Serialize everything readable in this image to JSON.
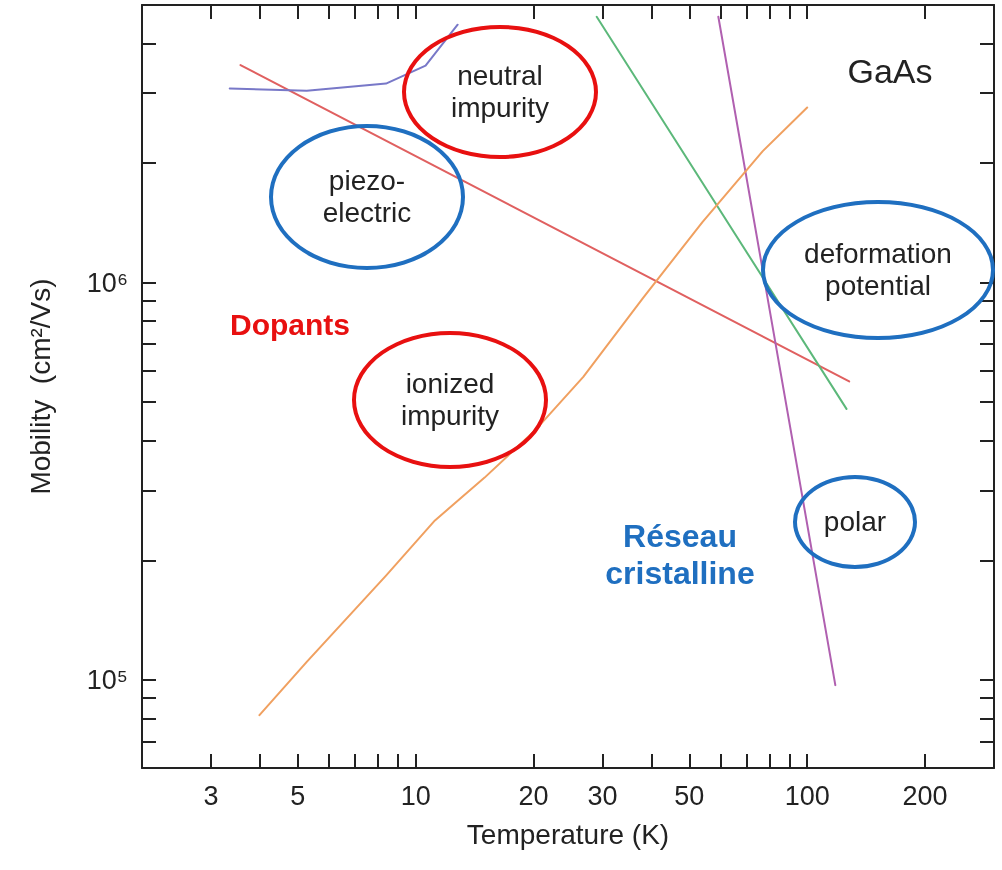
{
  "chart_data": {
    "type": "line",
    "xlabel": "Temperature (K)",
    "ylabel": "Mobility  (cm²/Vs)",
    "log": "xy",
    "grid": false,
    "marker": "none",
    "xlim": [
      2,
      300
    ],
    "ylim": [
      60000,
      5000000
    ],
    "xticks": [
      3,
      {
        "value": 4,
        "label": null
      },
      5,
      {
        "value": 6,
        "label": null
      },
      {
        "value": 7,
        "label": null
      },
      {
        "value": 8,
        "label": null
      },
      {
        "value": 9,
        "label": null
      },
      10,
      20,
      30,
      {
        "value": 40,
        "label": null
      },
      50,
      {
        "value": 60,
        "label": null
      },
      {
        "value": 70,
        "label": null
      },
      {
        "value": 80,
        "label": null
      },
      {
        "value": 90,
        "label": null
      },
      100,
      200
    ],
    "yticks": [
      {
        "value": 70000,
        "label": null
      },
      {
        "value": 80000,
        "label": null
      },
      {
        "value": 90000,
        "label": null
      },
      {
        "value": 100000,
        "label": "10⁵"
      },
      {
        "value": 200000,
        "label": null
      },
      {
        "value": 300000,
        "label": null
      },
      {
        "value": 400000,
        "label": null
      },
      {
        "value": 500000,
        "label": null
      },
      {
        "value": 600000,
        "label": null
      },
      {
        "value": 700000,
        "label": null
      },
      {
        "value": 800000,
        "label": null
      },
      {
        "value": 900000,
        "label": null
      },
      {
        "value": 1000000,
        "label": "10⁶"
      },
      {
        "value": 2000000,
        "label": null
      },
      {
        "value": 3000000,
        "label": null
      },
      {
        "value": 4000000,
        "label": null
      }
    ],
    "series": [
      {
        "color": "#e06060",
        "x": [
          3.57,
          128
        ],
        "values": [
          3530000,
          564000
        ]
      },
      {
        "color": "#7878c8",
        "x": [
          3.35,
          5.27,
          8.4,
          10.6,
          12.8
        ],
        "values": [
          3080000,
          3040000,
          3170000,
          3520000,
          4460000
        ]
      },
      {
        "color": "#5cb87a",
        "x": [
          29,
          126
        ],
        "values": [
          4670000,
          481000
        ]
      },
      {
        "color": "#b060b0",
        "x": [
          59.3,
          118
        ],
        "values": [
          4670000,
          97000
        ]
      },
      {
        "color": "#f0a060",
        "x": [
          3.99,
          5.27,
          8.4,
          11.2,
          15.0,
          20.1,
          26.8,
          38.1,
          54,
          76.9,
          100
        ],
        "values": [
          81500,
          111000,
          183000,
          252000,
          323000,
          423000,
          579000,
          916000,
          1420000,
          2140000,
          2760000
        ]
      }
    ],
    "annotations": [
      "GaAs",
      "neutral\nimpurity",
      "piezo-\nelectric",
      "deformation\npotential",
      "Dopants",
      "ionized\nimpurity",
      "polar",
      "Réseau\ncristalline"
    ]
  }
}
